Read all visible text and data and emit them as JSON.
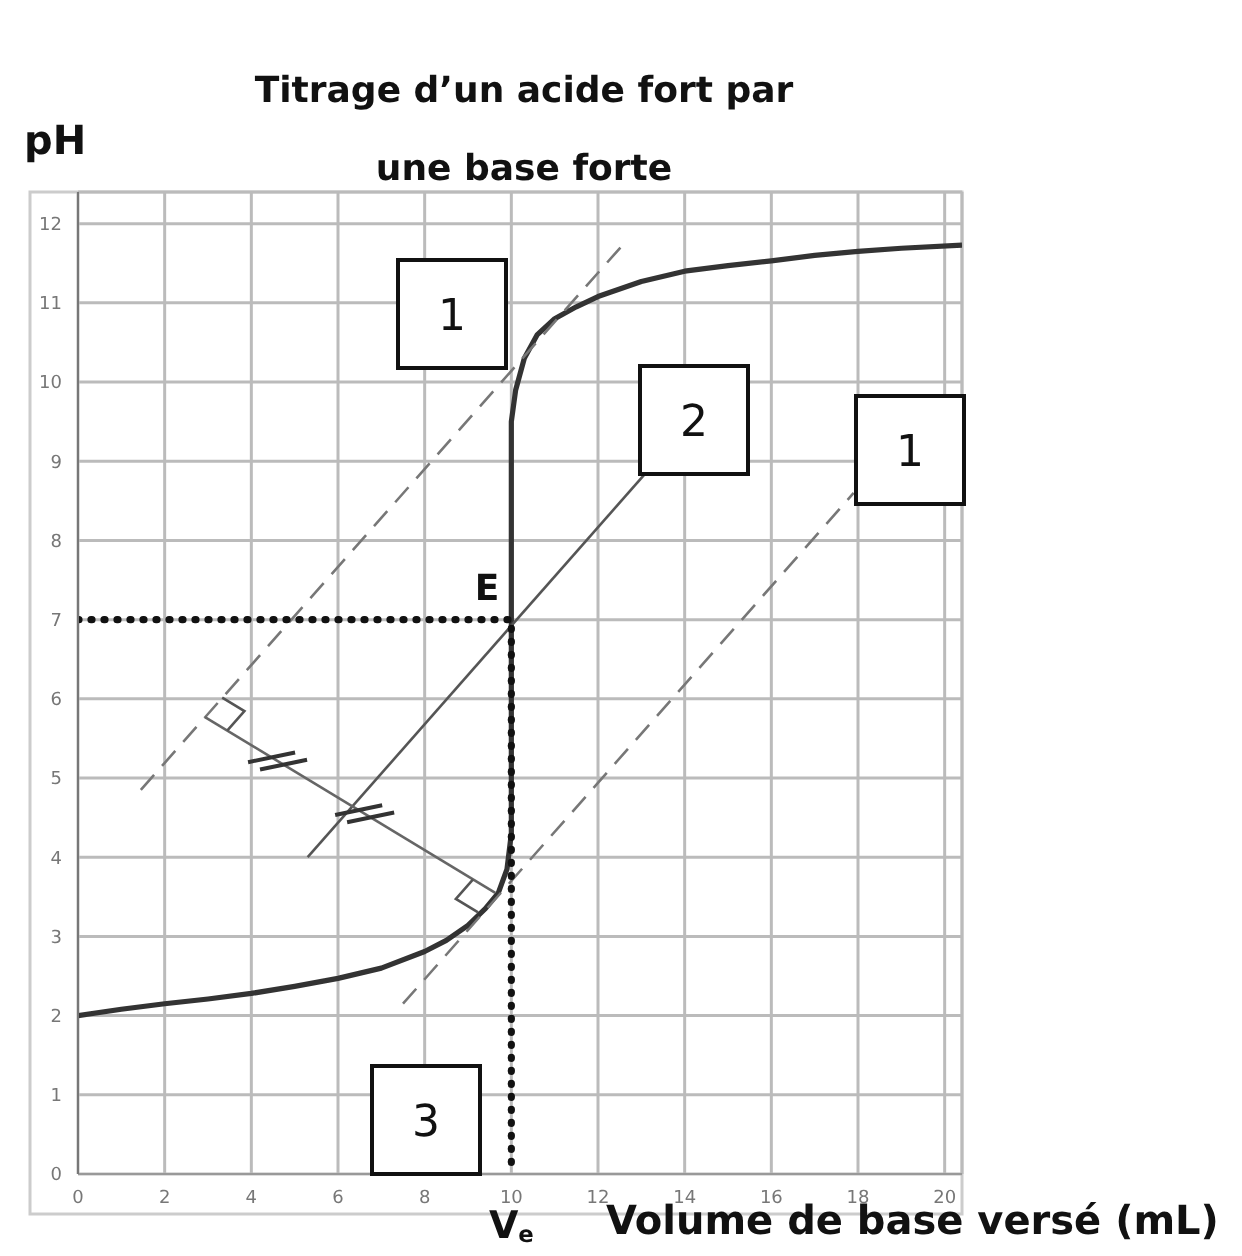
{
  "chart_data": {
    "type": "line",
    "title": "Titrage d’un acide fort par une base forte",
    "xlabel": "Volume de base versé (mL)",
    "ylabel": "pH",
    "xlim": [
      0,
      20.4
    ],
    "ylim": [
      0,
      12.4
    ],
    "xticks": [
      0,
      2,
      4,
      6,
      8,
      10,
      12,
      14,
      16,
      18,
      20
    ],
    "yticks": [
      0,
      1,
      2,
      3,
      4,
      5,
      6,
      7,
      8,
      9,
      10,
      11,
      12
    ],
    "grid": true,
    "series": [
      {
        "color": "#333333",
        "x": [
          0,
          1,
          2,
          3,
          4,
          5,
          6,
          7,
          8,
          8.5,
          9,
          9.4,
          9.7,
          9.9,
          10,
          10,
          10.1,
          10.3,
          10.6,
          11,
          11.5,
          12,
          13,
          14,
          15,
          16,
          17,
          18,
          19,
          20.4
        ],
        "values": [
          2.0,
          2.08,
          2.15,
          2.21,
          2.28,
          2.37,
          2.47,
          2.6,
          2.81,
          2.95,
          3.14,
          3.35,
          3.55,
          3.85,
          4.3,
          9.5,
          9.9,
          10.3,
          10.6,
          10.8,
          10.95,
          11.08,
          11.27,
          11.4,
          11.47,
          11.53,
          11.6,
          11.65,
          11.69,
          11.73
        ]
      },
      {
        "color": "#777777",
        "line_style": "dashed",
        "x": [
          1.45,
          12.6
        ],
        "values": [
          4.85,
          11.75
        ]
      },
      {
        "color": "#555555",
        "line_style": "solid",
        "x": [
          5.3,
          13.1
        ],
        "values": [
          4.0,
          8.85
        ]
      },
      {
        "color": "#777777",
        "line_style": "dashed",
        "x": [
          7.5,
          17.9
        ],
        "values": [
          2.15,
          8.6
        ]
      },
      {
        "color": "#666666",
        "line_style": "solid",
        "x": [
          2.93,
          9.63
        ],
        "values": [
          5.77,
          3.55
        ]
      },
      {
        "color": "#111111",
        "line_style": "dotted",
        "x": [
          0,
          10,
          10
        ],
        "values": [
          7,
          7,
          0
        ]
      }
    ],
    "annotations": [
      "1",
      "2",
      "1",
      "3",
      {
        "text": "E",
        "x": 10,
        "y": 7
      },
      {
        "text": "V$_{e}$",
        "x": 10,
        "y": 0
      }
    ]
  }
}
